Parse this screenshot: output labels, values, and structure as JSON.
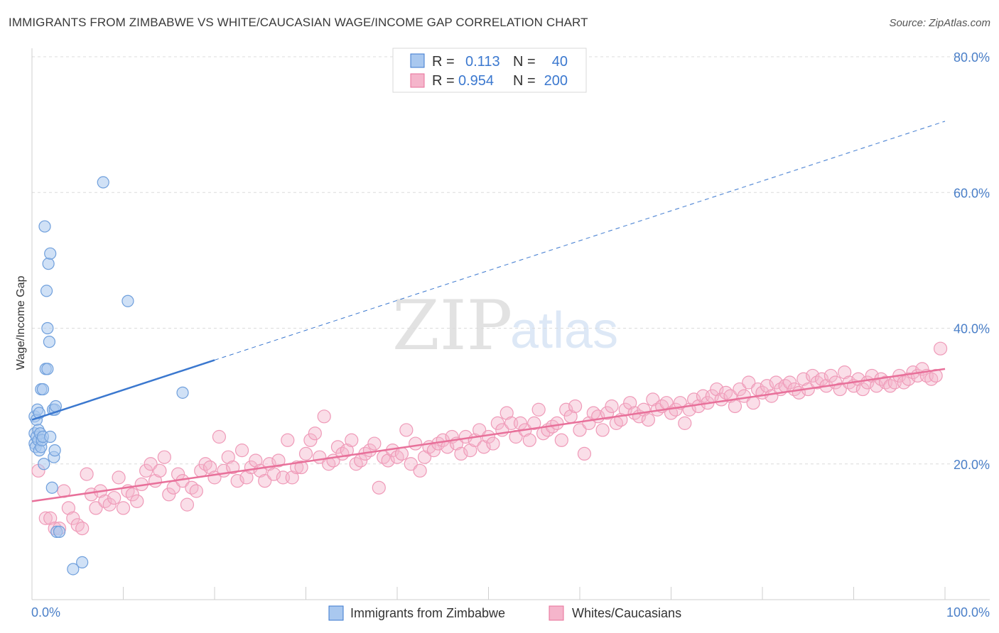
{
  "title": "IMMIGRANTS FROM ZIMBABWE VS WHITE/CAUCASIAN WAGE/INCOME GAP CORRELATION CHART",
  "source": "Source: ZipAtlas.com",
  "watermark": {
    "zip": "ZIP",
    "atlas": "atlas"
  },
  "chart_data": {
    "type": "scatter",
    "title": "IMMIGRANTS FROM ZIMBABWE VS WHITE/CAUCASIAN WAGE/INCOME GAP CORRELATION CHART",
    "xlabel": "",
    "ylabel": "Wage/Income Gap",
    "xlim": [
      0,
      100
    ],
    "ylim": [
      0,
      80
    ],
    "x_tick_labels": [
      "0.0%",
      "100.0%"
    ],
    "y_tick_labels": [
      "20.0%",
      "40.0%",
      "60.0%",
      "80.0%"
    ],
    "grid": true,
    "legend_position": "top-center",
    "colors": {
      "blue": "#3b78cf",
      "pink": "#e8709a",
      "blue_fill": "#a9c8ef",
      "pink_fill": "#f5b5cb"
    },
    "legend": [
      {
        "r_label": "R =",
        "r": "0.113",
        "n_label": "N =",
        "n": "40"
      },
      {
        "r_label": "R =",
        "r": "0.954",
        "n_label": "N =",
        "n": "200"
      }
    ],
    "series": [
      {
        "name": "Immigrants from Zimbabwe",
        "color": "#3b78cf",
        "trend": {
          "x0": 0,
          "y0": 26.5,
          "x1": 100,
          "y1": 70.5,
          "solid_until": 20
        },
        "points": [
          [
            0.3,
            27
          ],
          [
            0.3,
            24.5
          ],
          [
            0.3,
            23
          ],
          [
            0.4,
            22.5
          ],
          [
            0.5,
            26.5
          ],
          [
            0.5,
            24
          ],
          [
            0.6,
            28
          ],
          [
            0.7,
            25
          ],
          [
            0.7,
            23.5
          ],
          [
            0.8,
            27.5
          ],
          [
            0.8,
            22
          ],
          [
            0.9,
            24.5
          ],
          [
            1.0,
            31
          ],
          [
            1.0,
            22.5
          ],
          [
            1.1,
            23.5
          ],
          [
            1.2,
            24
          ],
          [
            1.2,
            31
          ],
          [
            1.3,
            20
          ],
          [
            1.4,
            55
          ],
          [
            1.5,
            34
          ],
          [
            1.6,
            45.5
          ],
          [
            1.7,
            40
          ],
          [
            1.7,
            34
          ],
          [
            1.8,
            49.5
          ],
          [
            1.9,
            38
          ],
          [
            2.0,
            51
          ],
          [
            2.0,
            24
          ],
          [
            2.2,
            16.5
          ],
          [
            2.3,
            28
          ],
          [
            2.4,
            21
          ],
          [
            2.5,
            28
          ],
          [
            2.5,
            22
          ],
          [
            2.6,
            28.5
          ],
          [
            2.7,
            10
          ],
          [
            3.0,
            10
          ],
          [
            4.5,
            4.5
          ],
          [
            5.5,
            5.5
          ],
          [
            7.8,
            61.5
          ],
          [
            10.5,
            44
          ],
          [
            16.5,
            30.5
          ]
        ]
      },
      {
        "name": "Whites/Caucasians",
        "color": "#e8709a",
        "trend": {
          "x0": 0,
          "y0": 14.5,
          "x1": 100,
          "y1": 34.0
        },
        "points": [
          [
            0.7,
            19
          ],
          [
            1.5,
            12
          ],
          [
            2.0,
            12
          ],
          [
            2.5,
            10.5
          ],
          [
            3.0,
            10.5
          ],
          [
            3.5,
            16
          ],
          [
            4.0,
            13.5
          ],
          [
            4.5,
            12
          ],
          [
            5.0,
            11
          ],
          [
            5.5,
            10.5
          ],
          [
            6.0,
            18.5
          ],
          [
            6.5,
            15.5
          ],
          [
            7.0,
            13.5
          ],
          [
            7.5,
            16
          ],
          [
            8.0,
            14.5
          ],
          [
            8.5,
            14
          ],
          [
            9.0,
            15
          ],
          [
            9.5,
            18
          ],
          [
            10.0,
            13.5
          ],
          [
            10.5,
            16
          ],
          [
            11.0,
            15.5
          ],
          [
            11.5,
            14.5
          ],
          [
            12.0,
            17
          ],
          [
            12.5,
            19
          ],
          [
            13.0,
            20
          ],
          [
            13.5,
            17.5
          ],
          [
            14.0,
            19
          ],
          [
            14.5,
            21
          ],
          [
            15.0,
            15.5
          ],
          [
            15.5,
            16.5
          ],
          [
            16.0,
            18.5
          ],
          [
            16.5,
            17.5
          ],
          [
            17.0,
            14
          ],
          [
            17.5,
            16.5
          ],
          [
            18.0,
            16
          ],
          [
            18.5,
            19
          ],
          [
            19.0,
            20
          ],
          [
            19.5,
            19.5
          ],
          [
            20.0,
            18
          ],
          [
            20.5,
            24
          ],
          [
            21.0,
            19
          ],
          [
            21.5,
            21
          ],
          [
            22.0,
            19.5
          ],
          [
            22.5,
            17.5
          ],
          [
            23.0,
            22
          ],
          [
            23.5,
            18
          ],
          [
            24.0,
            19.5
          ],
          [
            24.5,
            20.5
          ],
          [
            25.0,
            19
          ],
          [
            25.5,
            17.5
          ],
          [
            26.0,
            20
          ],
          [
            26.5,
            18.5
          ],
          [
            27.0,
            20.5
          ],
          [
            27.5,
            18
          ],
          [
            28.0,
            23.5
          ],
          [
            28.5,
            18
          ],
          [
            29.0,
            19.5
          ],
          [
            29.5,
            19.5
          ],
          [
            30.0,
            21.5
          ],
          [
            30.5,
            23.5
          ],
          [
            31.0,
            24.5
          ],
          [
            31.5,
            21
          ],
          [
            32.0,
            27
          ],
          [
            32.5,
            20
          ],
          [
            33.0,
            20.5
          ],
          [
            33.5,
            22.5
          ],
          [
            34.0,
            21.5
          ],
          [
            34.5,
            22
          ],
          [
            35.0,
            23.5
          ],
          [
            35.5,
            20
          ],
          [
            36.0,
            20.5
          ],
          [
            36.5,
            21.5
          ],
          [
            37.0,
            22
          ],
          [
            37.5,
            23
          ],
          [
            38.0,
            16.5
          ],
          [
            38.5,
            21
          ],
          [
            39.0,
            20.5
          ],
          [
            39.5,
            22
          ],
          [
            40.0,
            21
          ],
          [
            40.5,
            21.5
          ],
          [
            41.0,
            25
          ],
          [
            41.5,
            20
          ],
          [
            42.0,
            23
          ],
          [
            42.5,
            19
          ],
          [
            43.0,
            21
          ],
          [
            43.5,
            22.5
          ],
          [
            44.0,
            22
          ],
          [
            44.5,
            23
          ],
          [
            45.0,
            23.5
          ],
          [
            45.5,
            22.5
          ],
          [
            46.0,
            24
          ],
          [
            46.5,
            23
          ],
          [
            47.0,
            21.5
          ],
          [
            47.5,
            24
          ],
          [
            48.0,
            22
          ],
          [
            48.5,
            23.5
          ],
          [
            49.0,
            25
          ],
          [
            49.5,
            22.5
          ],
          [
            50.0,
            24
          ],
          [
            50.5,
            23
          ],
          [
            51.0,
            26
          ],
          [
            51.5,
            25
          ],
          [
            52.0,
            27.5
          ],
          [
            52.5,
            26
          ],
          [
            53.0,
            24
          ],
          [
            53.5,
            26
          ],
          [
            54.0,
            25
          ],
          [
            54.5,
            23.5
          ],
          [
            55.0,
            26
          ],
          [
            55.5,
            28
          ],
          [
            56.0,
            24.5
          ],
          [
            56.5,
            25
          ],
          [
            57.0,
            25.5
          ],
          [
            57.5,
            26
          ],
          [
            58.0,
            23.5
          ],
          [
            58.5,
            28
          ],
          [
            59.0,
            27
          ],
          [
            59.5,
            28.5
          ],
          [
            60.0,
            25
          ],
          [
            60.5,
            21.5
          ],
          [
            61.0,
            26
          ],
          [
            61.5,
            27.5
          ],
          [
            62.0,
            27
          ],
          [
            62.5,
            25
          ],
          [
            63.0,
            27.5
          ],
          [
            63.5,
            28.5
          ],
          [
            64.0,
            26
          ],
          [
            64.5,
            26.5
          ],
          [
            65.0,
            28
          ],
          [
            65.5,
            29
          ],
          [
            66.0,
            27.5
          ],
          [
            66.5,
            27
          ],
          [
            67.0,
            28
          ],
          [
            67.5,
            26.5
          ],
          [
            68.0,
            29.5
          ],
          [
            68.5,
            28
          ],
          [
            69.0,
            28.5
          ],
          [
            69.5,
            29
          ],
          [
            70.0,
            27.5
          ],
          [
            70.5,
            28
          ],
          [
            71.0,
            29
          ],
          [
            71.5,
            26
          ],
          [
            72.0,
            28
          ],
          [
            72.5,
            29.5
          ],
          [
            73.0,
            28.5
          ],
          [
            73.5,
            30
          ],
          [
            74.0,
            29
          ],
          [
            74.5,
            30
          ],
          [
            75.0,
            31
          ],
          [
            75.5,
            29.5
          ],
          [
            76.0,
            30.5
          ],
          [
            76.5,
            30
          ],
          [
            77.0,
            28.5
          ],
          [
            77.5,
            31
          ],
          [
            78.0,
            30
          ],
          [
            78.5,
            32
          ],
          [
            79.0,
            29
          ],
          [
            79.5,
            31
          ],
          [
            80.0,
            30.5
          ],
          [
            80.5,
            31.5
          ],
          [
            81.0,
            30
          ],
          [
            81.5,
            32
          ],
          [
            82.0,
            31
          ],
          [
            82.5,
            31.5
          ],
          [
            83.0,
            32
          ],
          [
            83.5,
            31
          ],
          [
            84.0,
            30.5
          ],
          [
            84.5,
            32.5
          ],
          [
            85.0,
            31
          ],
          [
            85.5,
            33
          ],
          [
            86.0,
            32
          ],
          [
            86.5,
            32.5
          ],
          [
            87.0,
            31.5
          ],
          [
            87.5,
            33
          ],
          [
            88.0,
            32
          ],
          [
            88.5,
            31
          ],
          [
            89.0,
            33.5
          ],
          [
            89.5,
            32
          ],
          [
            90.0,
            31.5
          ],
          [
            90.5,
            32.5
          ],
          [
            91.0,
            31
          ],
          [
            91.5,
            32
          ],
          [
            92.0,
            33
          ],
          [
            92.5,
            31.5
          ],
          [
            93.0,
            32.5
          ],
          [
            93.5,
            32
          ],
          [
            94.0,
            31.5
          ],
          [
            94.5,
            32
          ],
          [
            95.0,
            33
          ],
          [
            95.5,
            32
          ],
          [
            96.0,
            32.5
          ],
          [
            96.5,
            33.5
          ],
          [
            97.0,
            33
          ],
          [
            97.5,
            34
          ],
          [
            98.0,
            33
          ],
          [
            98.5,
            32.5
          ],
          [
            99.0,
            33
          ],
          [
            99.5,
            37
          ]
        ]
      }
    ]
  }
}
